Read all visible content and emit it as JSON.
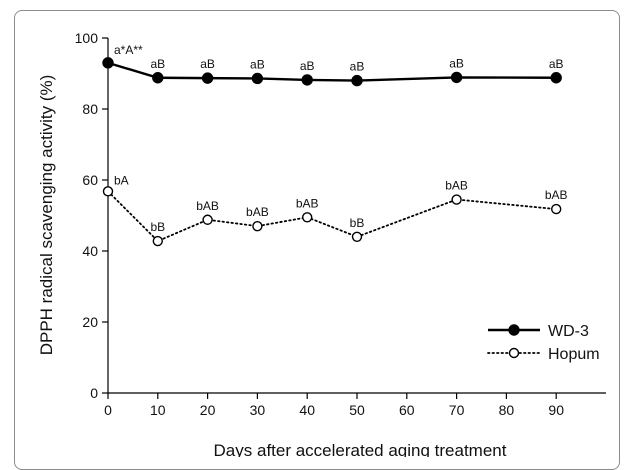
{
  "chart_data": {
    "type": "line",
    "xlabel": "Days after accelerated aging treatment",
    "ylabel": "DPPH radical scavenging activity (%)",
    "xlim": [
      0,
      100
    ],
    "ylim": [
      0,
      100
    ],
    "xticks": [
      0,
      10,
      20,
      30,
      40,
      50,
      60,
      70,
      80,
      90
    ],
    "yticks": [
      0,
      20,
      40,
      60,
      80,
      100
    ],
    "grid": false,
    "legend_position": "bottom-right",
    "series": [
      {
        "name": "WD-3",
        "marker": "filled-circle",
        "line_style": "solid",
        "color": "#000000",
        "x": [
          0,
          10,
          20,
          30,
          40,
          50,
          70,
          90
        ],
        "y": [
          93.0,
          88.8,
          88.7,
          88.6,
          88.2,
          88.0,
          88.9,
          88.8
        ],
        "labels": [
          "a*A**",
          "aB",
          "aB",
          "aB",
          "aB",
          "aB",
          "aB",
          "aB"
        ]
      },
      {
        "name": "Hopum",
        "marker": "open-circle",
        "line_style": "dotted",
        "color": "#000000",
        "x": [
          0,
          10,
          20,
          30,
          40,
          50,
          70,
          90
        ],
        "y": [
          56.8,
          42.8,
          48.8,
          47.0,
          49.5,
          44.0,
          54.5,
          51.8
        ],
        "labels": [
          "bA",
          "bB",
          "bAB",
          "bAB",
          "bAB",
          "bB",
          "bAB",
          "bAB"
        ]
      }
    ]
  }
}
